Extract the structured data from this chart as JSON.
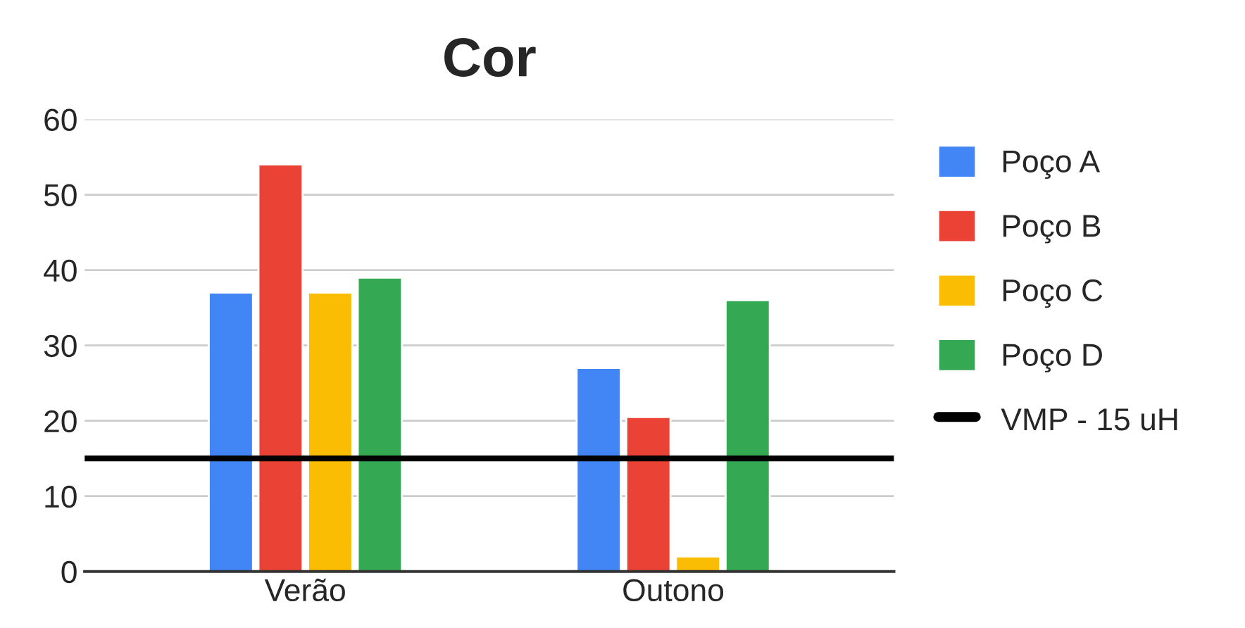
{
  "chart_data": {
    "type": "bar",
    "title": "Cor",
    "categories": [
      "Verão",
      "Outono"
    ],
    "series": [
      {
        "name": "Poço A",
        "color": "#4285f4",
        "values": [
          37,
          27
        ]
      },
      {
        "name": "Poço B",
        "color": "#ea4335",
        "values": [
          54,
          20.5
        ]
      },
      {
        "name": "Poço C",
        "color": "#fbbc04",
        "values": [
          37,
          2
        ]
      },
      {
        "name": "Poço D",
        "color": "#34a853",
        "values": [
          39,
          36
        ]
      }
    ],
    "ref_lines": [
      {
        "axis": "y",
        "value": 15,
        "label": "VMP - 15 uH",
        "color": "#000000",
        "line_style": "solid"
      }
    ],
    "ylim": [
      0,
      60
    ],
    "yticks": [
      0,
      10,
      20,
      30,
      40,
      50,
      60
    ],
    "grid": "y",
    "legend": "right"
  }
}
